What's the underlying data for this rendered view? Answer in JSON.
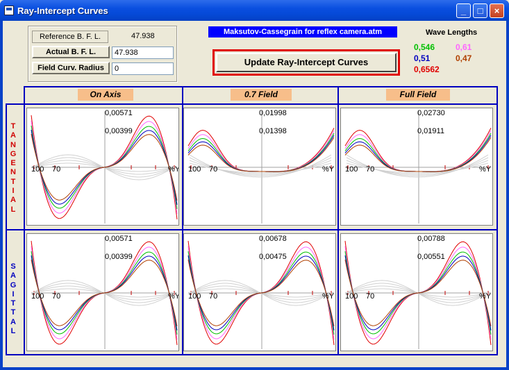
{
  "window": {
    "title": "Ray-Intercept Curves"
  },
  "bfl": {
    "reference_label": "Reference  B. F. L.",
    "reference_value": "47.938",
    "actual_label": "Actual  B. F. L.",
    "actual_value": "47.938",
    "field_curv_label": "Field Curv. Radius",
    "field_curv_value": "0"
  },
  "file_banner": "Maksutov-Cassegrain for reflex camera.atm",
  "update_button": "Update  Ray-Intercept Curves",
  "wavelengths": {
    "title": "Wave Lengths",
    "items": [
      {
        "label": "0,546",
        "color": "#00C000"
      },
      {
        "label": "0,61",
        "color": "#FF66FF"
      },
      {
        "label": "0,51",
        "color": "#0000C0"
      },
      {
        "label": "0,47",
        "color": "#B04000"
      },
      {
        "label": "0,6562",
        "color": "#E00000"
      }
    ]
  },
  "columns": [
    "On  Axis",
    "0.7 Field",
    "Full Field"
  ],
  "rows": {
    "tangential": "TANGENTIAL",
    "sagittal": "SAGITTAL"
  },
  "axis_labels": {
    "x_left": "100",
    "x_mid": "70",
    "x_right": "%Y"
  },
  "plots": [
    {
      "id": "tan-onaxis",
      "top": "0,00571",
      "mid": "0,00399",
      "kind": "deep"
    },
    {
      "id": "tan-07",
      "top": "0,01998",
      "mid": "0,01398",
      "kind": "tilt"
    },
    {
      "id": "tan-full",
      "top": "0,02730",
      "mid": "0,01911",
      "kind": "tilt"
    },
    {
      "id": "sag-onaxis",
      "top": "0,00571",
      "mid": "0,00399",
      "kind": "deep"
    },
    {
      "id": "sag-07",
      "top": "0,00678",
      "mid": "0,00475",
      "kind": "deep"
    },
    {
      "id": "sag-full",
      "top": "0,00788",
      "mid": "0,00551",
      "kind": "deep"
    }
  ]
}
